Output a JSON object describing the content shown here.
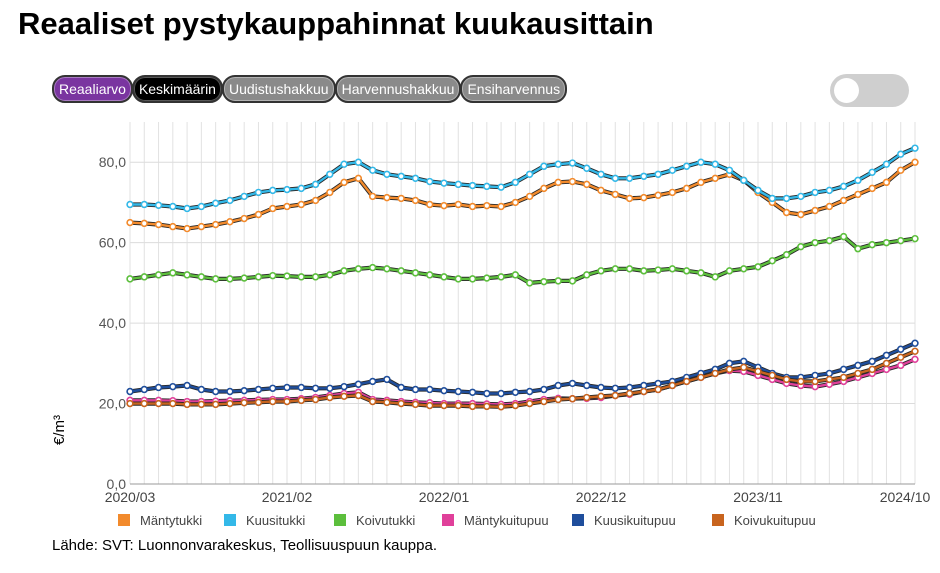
{
  "title": "Reaaliset pystykauppahinnat kuukausittain",
  "buttons": [
    {
      "label": "Reaaliarvo",
      "style": "purple"
    },
    {
      "label": "Keskimäärin",
      "style": "black"
    },
    {
      "label": "Uudistushakkuu",
      "style": "gray"
    },
    {
      "label": "Harvennushakkuu",
      "style": "gray"
    },
    {
      "label": "Ensiharvennus",
      "style": "gray"
    }
  ],
  "toggle": {
    "on": false
  },
  "source": "Lähde: SVT: Luonnonvarakeskus, Teollisuuspuun kauppa.",
  "chart_data": {
    "type": "line",
    "title": "Reaaliset pystykauppahinnat kuukausittain",
    "xlabel": "",
    "ylabel": "€/m³",
    "ylim": [
      0,
      90
    ],
    "yticks": [
      "0,0",
      "20,0",
      "40,0",
      "60,0",
      "80,0"
    ],
    "ytick_values": [
      0,
      20,
      40,
      60,
      80
    ],
    "xtick_labels": [
      "2020/03",
      "2021/02",
      "2022/01",
      "2022/12",
      "2023/11",
      "2024/10"
    ],
    "xtick_indices": [
      0,
      11,
      22,
      33,
      44,
      55
    ],
    "x_start": "2020/03",
    "n_points": 56,
    "grid": true,
    "series": [
      {
        "name": "Mäntytukki",
        "color": "#f28a2c",
        "values": [
          65,
          64.8,
          64.5,
          64,
          63.5,
          64,
          64.5,
          65.2,
          66,
          67,
          68.5,
          69,
          69.5,
          70.5,
          72.5,
          75,
          76,
          71.5,
          71.2,
          71,
          70.5,
          69.5,
          69.2,
          69.5,
          69,
          69.2,
          69,
          70,
          71.5,
          73.5,
          75,
          75.2,
          74.5,
          73,
          72,
          71,
          71.2,
          71.8,
          72.5,
          73.5,
          75,
          76,
          77,
          75.5,
          72.5,
          70,
          67.5,
          67,
          68,
          69,
          70.5,
          72,
          73.5,
          75,
          78,
          80
        ]
      },
      {
        "name": "Kuusitukki",
        "color": "#33b8e8",
        "values": [
          69.5,
          69.5,
          69.3,
          69,
          68.5,
          69,
          69.8,
          70.5,
          71.5,
          72.5,
          73,
          73.2,
          73.5,
          74.5,
          77,
          79.5,
          80,
          78,
          77,
          76.5,
          76,
          75.2,
          74.8,
          74.5,
          74.2,
          74,
          73.8,
          75,
          77,
          79,
          79.5,
          79.8,
          78.5,
          77,
          76,
          76,
          76.5,
          77,
          78,
          79,
          80,
          79.5,
          78,
          75.5,
          73,
          71,
          71,
          71.5,
          72.5,
          73,
          74,
          75.5,
          77.5,
          79.5,
          82,
          83.5
        ]
      },
      {
        "name": "Koivutukki",
        "color": "#5cbf3c",
        "values": [
          51,
          51.5,
          52,
          52.5,
          52,
          51.5,
          51,
          51,
          51.2,
          51.5,
          51.8,
          51.7,
          51.5,
          51.5,
          52,
          53,
          53.5,
          53.8,
          53.5,
          53,
          52.5,
          52,
          51.5,
          51,
          51,
          51.2,
          51.5,
          52,
          50,
          50.3,
          50.5,
          50.5,
          52,
          53,
          53.5,
          53.5,
          53,
          53.2,
          53.5,
          53,
          52.5,
          51.5,
          53,
          53.5,
          54,
          55.5,
          57,
          59,
          60,
          60.5,
          61.5,
          58.5,
          59.5,
          60,
          60.5,
          61
        ]
      },
      {
        "name": "Mäntykuitupuu",
        "color": "#e0409a",
        "values": [
          20.8,
          20.8,
          20.8,
          20.7,
          20.5,
          20.5,
          20.6,
          20.7,
          20.8,
          20.9,
          21,
          21,
          21.2,
          21.5,
          22,
          22.5,
          22.8,
          21,
          20.8,
          20.5,
          20.3,
          20.2,
          20,
          20,
          20,
          19.9,
          19.8,
          20,
          20.5,
          21,
          21.3,
          21.2,
          21.3,
          21.5,
          22,
          22.3,
          23,
          23.5,
          24.5,
          25.5,
          26.5,
          27.5,
          28.2,
          28,
          27,
          26,
          25,
          24.5,
          24.2,
          24.8,
          25.5,
          26.5,
          27.5,
          28.5,
          29.5,
          31
        ]
      },
      {
        "name": "Kuusikuitupuu",
        "color": "#1f4e9c",
        "values": [
          23,
          23.5,
          24,
          24.2,
          24.5,
          23.5,
          23,
          23,
          23.2,
          23.5,
          23.8,
          24,
          24,
          23.8,
          23.8,
          24.2,
          24.8,
          25.5,
          26,
          24,
          23.5,
          23.5,
          23.2,
          23,
          22.8,
          22.5,
          22.5,
          22.8,
          23,
          23.5,
          24.5,
          25,
          24.5,
          24,
          23.8,
          24,
          24.5,
          25,
          25.5,
          26.5,
          27.5,
          28.5,
          30,
          30.5,
          29,
          27.5,
          26.5,
          26.5,
          27,
          27.5,
          28.5,
          29.5,
          30.5,
          32,
          33.5,
          35
        ]
      },
      {
        "name": "Koivukuitupuu",
        "color": "#c8641e",
        "values": [
          20,
          20,
          20,
          20,
          19.8,
          19.8,
          19.8,
          20,
          20.2,
          20.3,
          20.5,
          20.5,
          20.8,
          21,
          21.5,
          21.8,
          22,
          20.5,
          20.3,
          20,
          19.8,
          19.5,
          19.5,
          19.5,
          19.3,
          19.3,
          19.2,
          19.5,
          20,
          20.5,
          21,
          21.2,
          21.5,
          21.8,
          22,
          22.5,
          23,
          23.5,
          24.5,
          25.5,
          26.5,
          27.5,
          28.5,
          29,
          28,
          27,
          26,
          25.5,
          25.5,
          26,
          26.5,
          27.5,
          28.5,
          30,
          31.5,
          33
        ]
      }
    ]
  }
}
